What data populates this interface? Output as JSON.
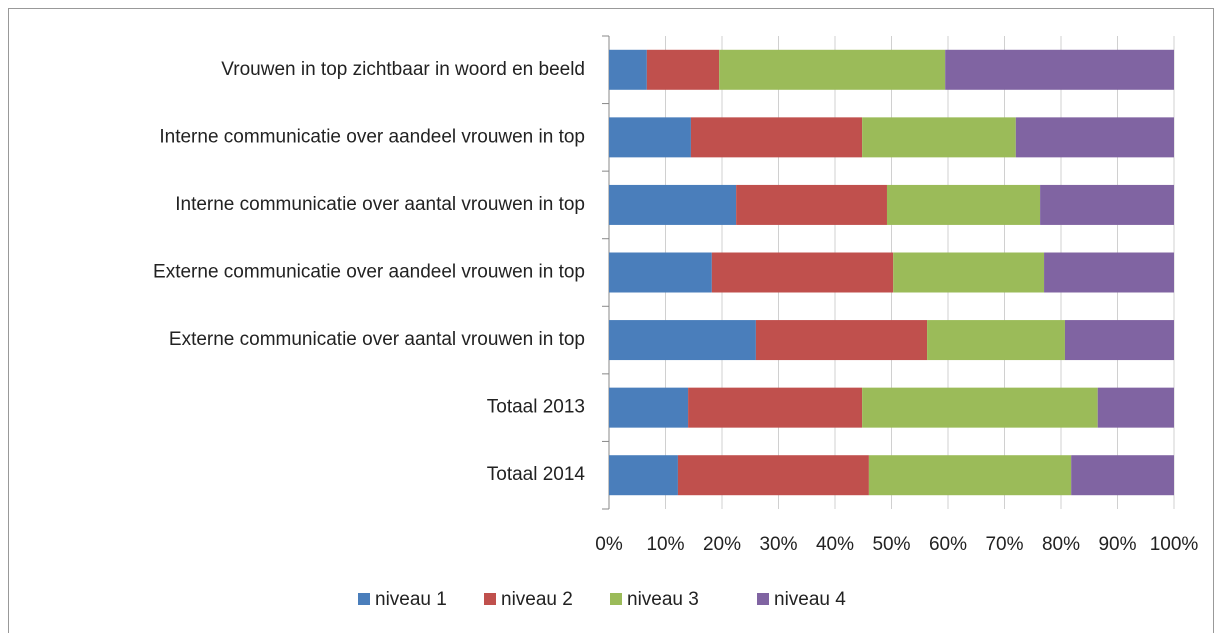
{
  "chart_data": {
    "type": "stacked_barh",
    "categories": [
      "Vrouwen in top zichtbaar in woord en beeld",
      "Interne communicatie over aandeel vrouwen in top",
      "Interne communicatie over aantal vrouwen in top",
      "Externe communicatie over aandeel vrouwen in top",
      "Externe communicatie over aantal vrouwen in top",
      "Totaal 2013",
      "Totaal 2014"
    ],
    "series": [
      {
        "name": "niveau 1",
        "color": "#4a7ebb",
        "values": [
          6.7,
          14.5,
          22.5,
          18.2,
          26.0,
          14.0,
          12.2
        ]
      },
      {
        "name": "niveau 2",
        "color": "#c0504d",
        "values": [
          12.8,
          30.3,
          26.7,
          32.1,
          30.3,
          30.8,
          33.8
        ]
      },
      {
        "name": "niveau 3",
        "color": "#9bbb59",
        "values": [
          40.0,
          27.2,
          27.1,
          26.7,
          24.4,
          41.7,
          35.8
        ]
      },
      {
        "name": "niveau 4",
        "color": "#8064a2",
        "values": [
          40.5,
          28.0,
          23.7,
          23.0,
          19.3,
          13.5,
          18.2
        ]
      }
    ],
    "xlim": [
      0,
      100
    ],
    "xticks": [
      {
        "value": 0,
        "label": "0%"
      },
      {
        "value": 10,
        "label": "10%"
      },
      {
        "value": 20,
        "label": "20%"
      },
      {
        "value": 30,
        "label": "30%"
      },
      {
        "value": 40,
        "label": "40%"
      },
      {
        "value": 50,
        "label": "50%"
      },
      {
        "value": 60,
        "label": "60%"
      },
      {
        "value": 70,
        "label": "70%"
      },
      {
        "value": 80,
        "label": "80%"
      },
      {
        "value": 90,
        "label": "90%"
      },
      {
        "value": 100,
        "label": "100%"
      }
    ],
    "grid": true,
    "legend": "bottom"
  }
}
